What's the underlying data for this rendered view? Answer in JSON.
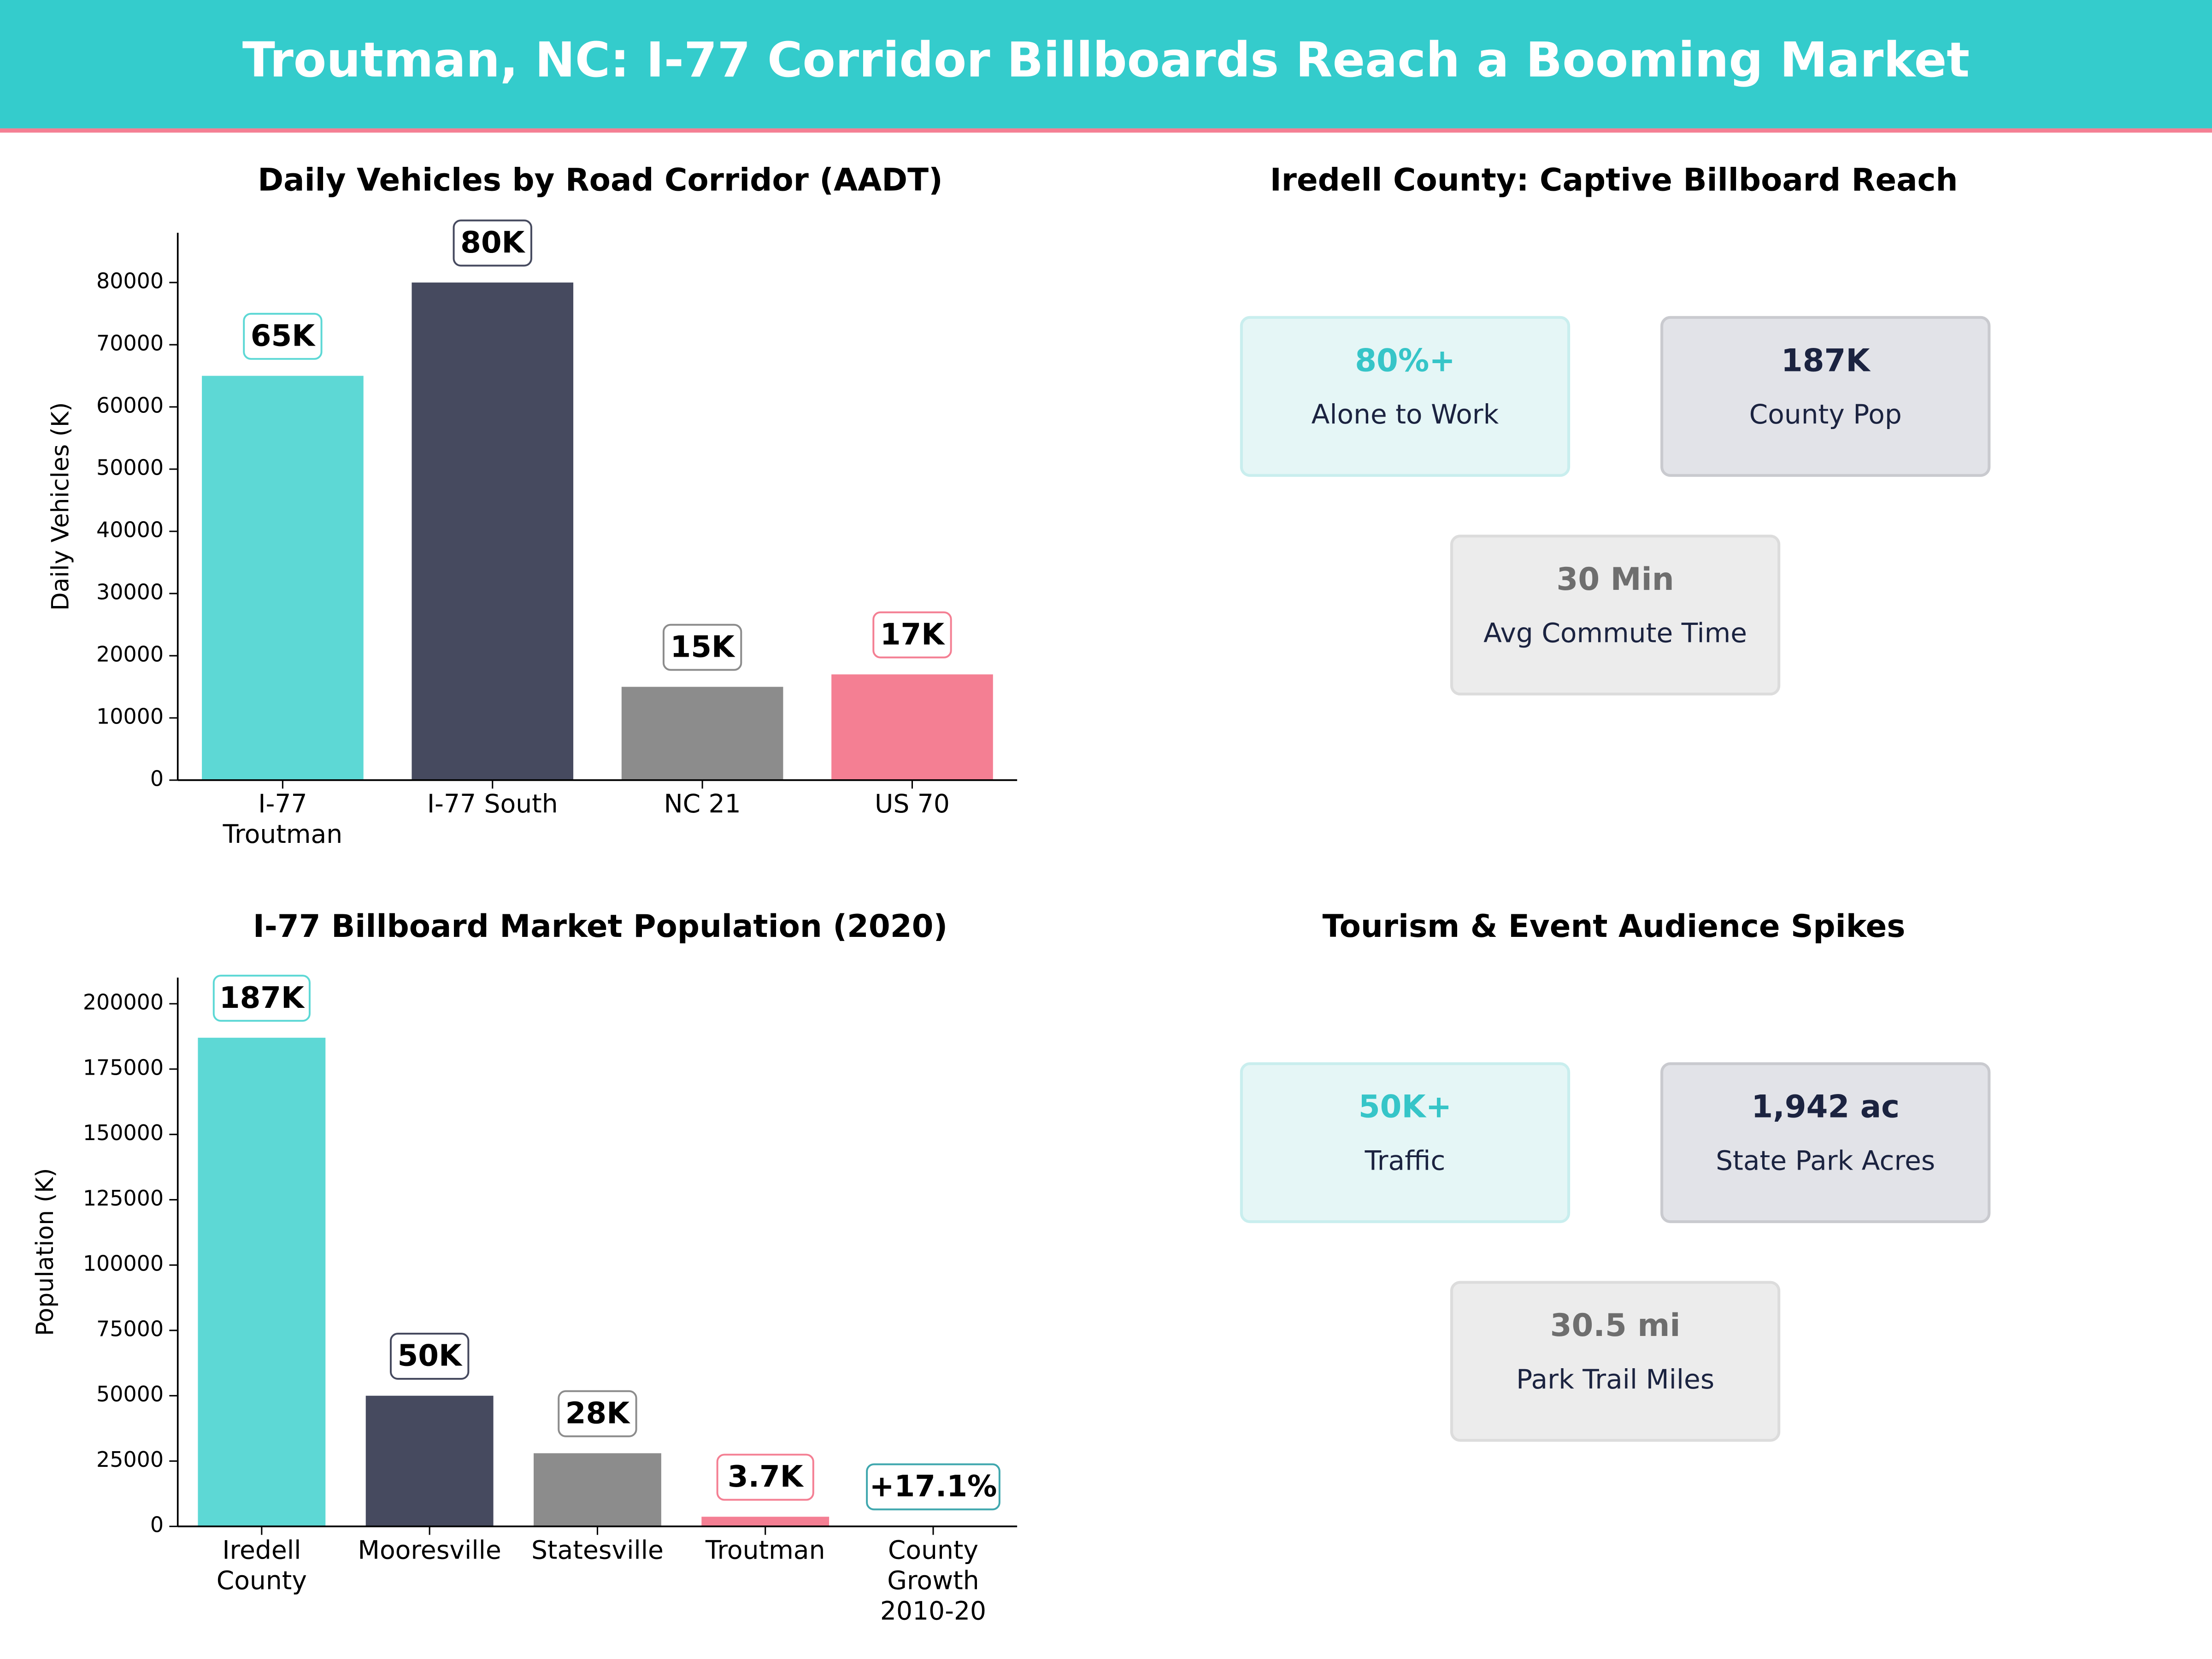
{
  "header": {
    "title": "Troutman, NC: I-77 Corridor Billboards Reach a Booming Market"
  },
  "chart_data": [
    {
      "type": "bar",
      "title": "Daily Vehicles by Road Corridor (AADT)",
      "ylabel": "Daily Vehicles (K)",
      "categories": [
        "I-77\nTroutman",
        "I-77 South",
        "NC 21",
        "US 70"
      ],
      "values": [
        65000,
        80000,
        15000,
        17000
      ],
      "value_labels": [
        "65K",
        "80K",
        "15K",
        "17K"
      ],
      "colors": [
        "#5dd8d5",
        "#464a5f",
        "#8c8c8c",
        "#f47f93"
      ],
      "ylim": [
        0,
        88000
      ],
      "yticks": [
        0,
        10000,
        20000,
        30000,
        40000,
        50000,
        60000,
        70000,
        80000
      ]
    },
    {
      "type": "bar",
      "title": "I-77 Billboard Market Population (2020)",
      "ylabel": "Population (K)",
      "categories": [
        "Iredell\nCounty",
        "Mooresville",
        "Statesville",
        "Troutman",
        "County\nGrowth\n2010-20"
      ],
      "values": [
        187000,
        50000,
        28000,
        3700,
        17.1
      ],
      "value_labels": [
        "187K",
        "50K",
        "28K",
        "3.7K",
        "+17.1%"
      ],
      "colors": [
        "#5dd8d5",
        "#464a5f",
        "#8c8c8c",
        "#f47f93",
        "#3fa7ae"
      ],
      "ylim": [
        0,
        210000
      ],
      "yticks": [
        0,
        25000,
        50000,
        75000,
        100000,
        125000,
        150000,
        175000,
        200000
      ]
    }
  ],
  "kpi_panels": [
    {
      "title": "Iredell County: Captive Billboard Reach",
      "cards": [
        {
          "value": "80%+",
          "label": "Alone to Work"
        },
        {
          "value": "187K",
          "label": "County Pop"
        },
        {
          "value": "30 Min",
          "label": "Avg Commute Time"
        }
      ]
    },
    {
      "title": "Tourism & Event Audience Spikes",
      "cards": [
        {
          "value": "50K+",
          "label": "Traffic"
        },
        {
          "value": "1,942 ac",
          "label": "State Park Acres"
        },
        {
          "value": "30.5 mi",
          "label": "Park Trail Miles"
        }
      ]
    }
  ]
}
